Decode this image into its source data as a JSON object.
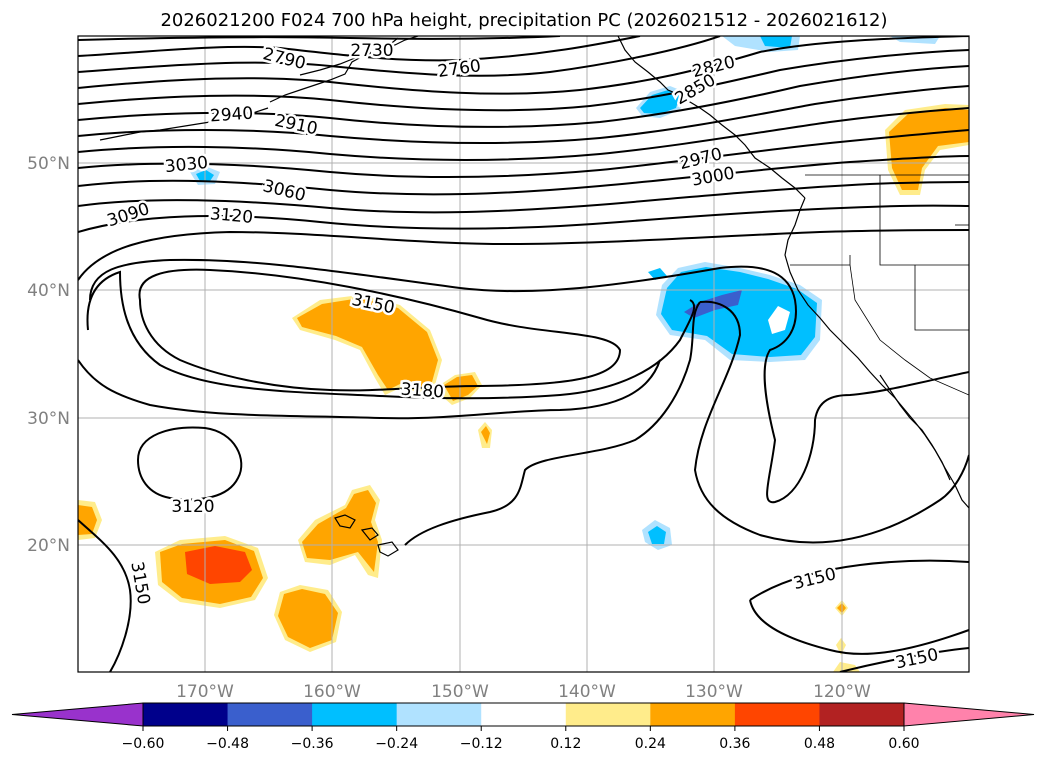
{
  "title": "2026021200 F024 700 hPa height, precipitation PC (2026021512 - 2026021612)",
  "axes": {
    "lon_ticks": [
      "170°W",
      "160°W",
      "150°W",
      "140°W",
      "130°W",
      "120°W"
    ],
    "lat_ticks": [
      "50°N",
      "40°N",
      "30°N",
      "20°N"
    ]
  },
  "contour_labels": [
    "2730",
    "2790",
    "2760",
    "2820",
    "2850",
    "2940",
    "2910",
    "2970",
    "3000",
    "3030",
    "3060",
    "3090",
    "3120",
    "3150",
    "3180",
    "3120",
    "3150",
    "3150",
    "3150"
  ],
  "colorbar": {
    "ticks": [
      "−0.60",
      "−0.48",
      "−0.36",
      "−0.24",
      "−0.12",
      "0.12",
      "0.24",
      "0.36",
      "0.48",
      "0.60"
    ],
    "colors": [
      "#9932cc",
      "#00008b",
      "#3a5fcd",
      "#00bfff",
      "#b0e2ff",
      "#ffffff",
      "#ffec8b",
      "#ffa500",
      "#ff4500",
      "#b22222",
      "#ff82ab"
    ]
  },
  "colors": {
    "pos_light": "#ffec8b",
    "pos_mid": "#ffa500",
    "pos_high": "#ff4500",
    "neg_light": "#b0e2ff",
    "neg_mid": "#00bfff",
    "neg_high": "#3a5fcd"
  }
}
